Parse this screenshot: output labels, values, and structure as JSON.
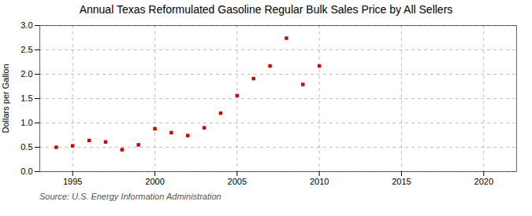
{
  "chart_data": {
    "type": "scatter",
    "title": "Annual Texas Reformulated Gasoline Regular Bulk Sales Price by All Sellers",
    "ylabel": "Dollars per Gallon",
    "source": "Source: U.S. Energy Information Administration",
    "x": [
      1994,
      1995,
      1996,
      1997,
      1998,
      1999,
      2000,
      2001,
      2002,
      2003,
      2004,
      2005,
      2006,
      2007,
      2008,
      2009,
      2010
    ],
    "values": [
      0.5,
      0.53,
      0.64,
      0.61,
      0.45,
      0.55,
      0.88,
      0.8,
      0.74,
      0.9,
      1.2,
      1.56,
      1.91,
      2.17,
      2.74,
      1.79,
      2.17
    ],
    "color": "#cc0000",
    "marker": "square",
    "xlim": [
      1993,
      2022
    ],
    "ylim": [
      0.0,
      3.0
    ],
    "xticks": [
      1995,
      2000,
      2005,
      2010,
      2015,
      2020
    ],
    "yticks": [
      {
        "value": 0.0,
        "label": "0.0"
      },
      0.5,
      {
        "value": 1.0,
        "label": "1.0"
      },
      1.5,
      {
        "value": 2.0,
        "label": "2.0"
      },
      2.5,
      {
        "value": 3.0,
        "label": "3.0"
      }
    ],
    "grid": true
  }
}
